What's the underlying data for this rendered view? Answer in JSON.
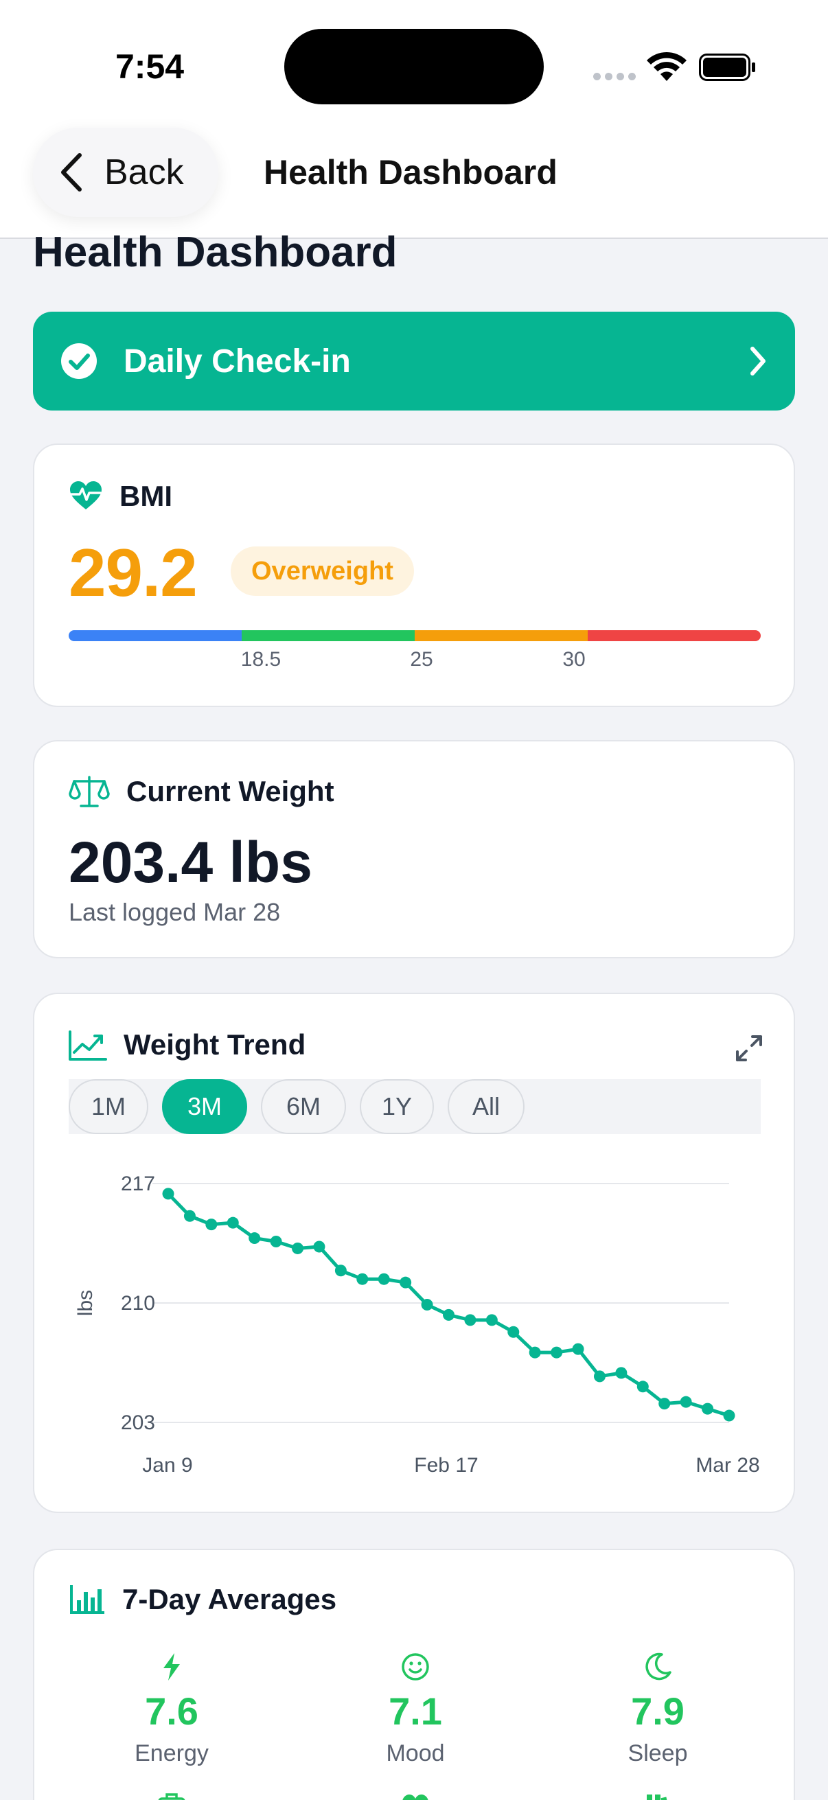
{
  "status_bar": {
    "time": "7:54"
  },
  "nav": {
    "back_label": "Back",
    "title": "Health Dashboard"
  },
  "page": {
    "title": "Health Dashboard"
  },
  "checkin": {
    "label": "Daily Check-in"
  },
  "bmi": {
    "title": "BMI",
    "value": "29.2",
    "category": "Overweight",
    "value_color": "#F59E0B",
    "scale_colors": [
      "#3B82F6",
      "#22C55E",
      "#F59E0B",
      "#EF4444"
    ],
    "ticks": [
      "18.5",
      "25",
      "30"
    ]
  },
  "weight": {
    "title": "Current Weight",
    "value": "203.4 lbs",
    "last_logged": "Last logged Mar 28"
  },
  "trend": {
    "title": "Weight Trend",
    "ranges": [
      "1M",
      "3M",
      "6M",
      "1Y",
      "All"
    ],
    "active_range": "3M",
    "accent": "#06B592"
  },
  "chart_data": {
    "type": "line",
    "ylabel": "lbs",
    "y_ticks": [
      "217",
      "210",
      "203"
    ],
    "ylim": [
      203,
      217
    ],
    "x_ticks": [
      "Jan 9",
      "Feb 17",
      "Mar 28"
    ],
    "x_range": [
      "Jan 9",
      "Mar 28"
    ],
    "grid": true,
    "series": [
      {
        "values": [
          216.4,
          215.1,
          214.6,
          214.7,
          213.8,
          213.6,
          213.2,
          213.3,
          211.9,
          211.4,
          211.4,
          211.2,
          209.9,
          209.3,
          209.0,
          209.0,
          208.3,
          207.1,
          207.1,
          207.3,
          205.7,
          205.9,
          205.1,
          204.1,
          204.2,
          203.8,
          203.4
        ]
      }
    ]
  },
  "averages": {
    "title": "7-Day Averages",
    "items": [
      {
        "label": "Energy",
        "value": "7.6",
        "icon": "lightning-icon"
      },
      {
        "label": "Mood",
        "value": "7.1",
        "icon": "smile-icon"
      },
      {
        "label": "Sleep",
        "value": "7.9",
        "icon": "moon-icon"
      }
    ],
    "value_color": "#22C55E"
  }
}
